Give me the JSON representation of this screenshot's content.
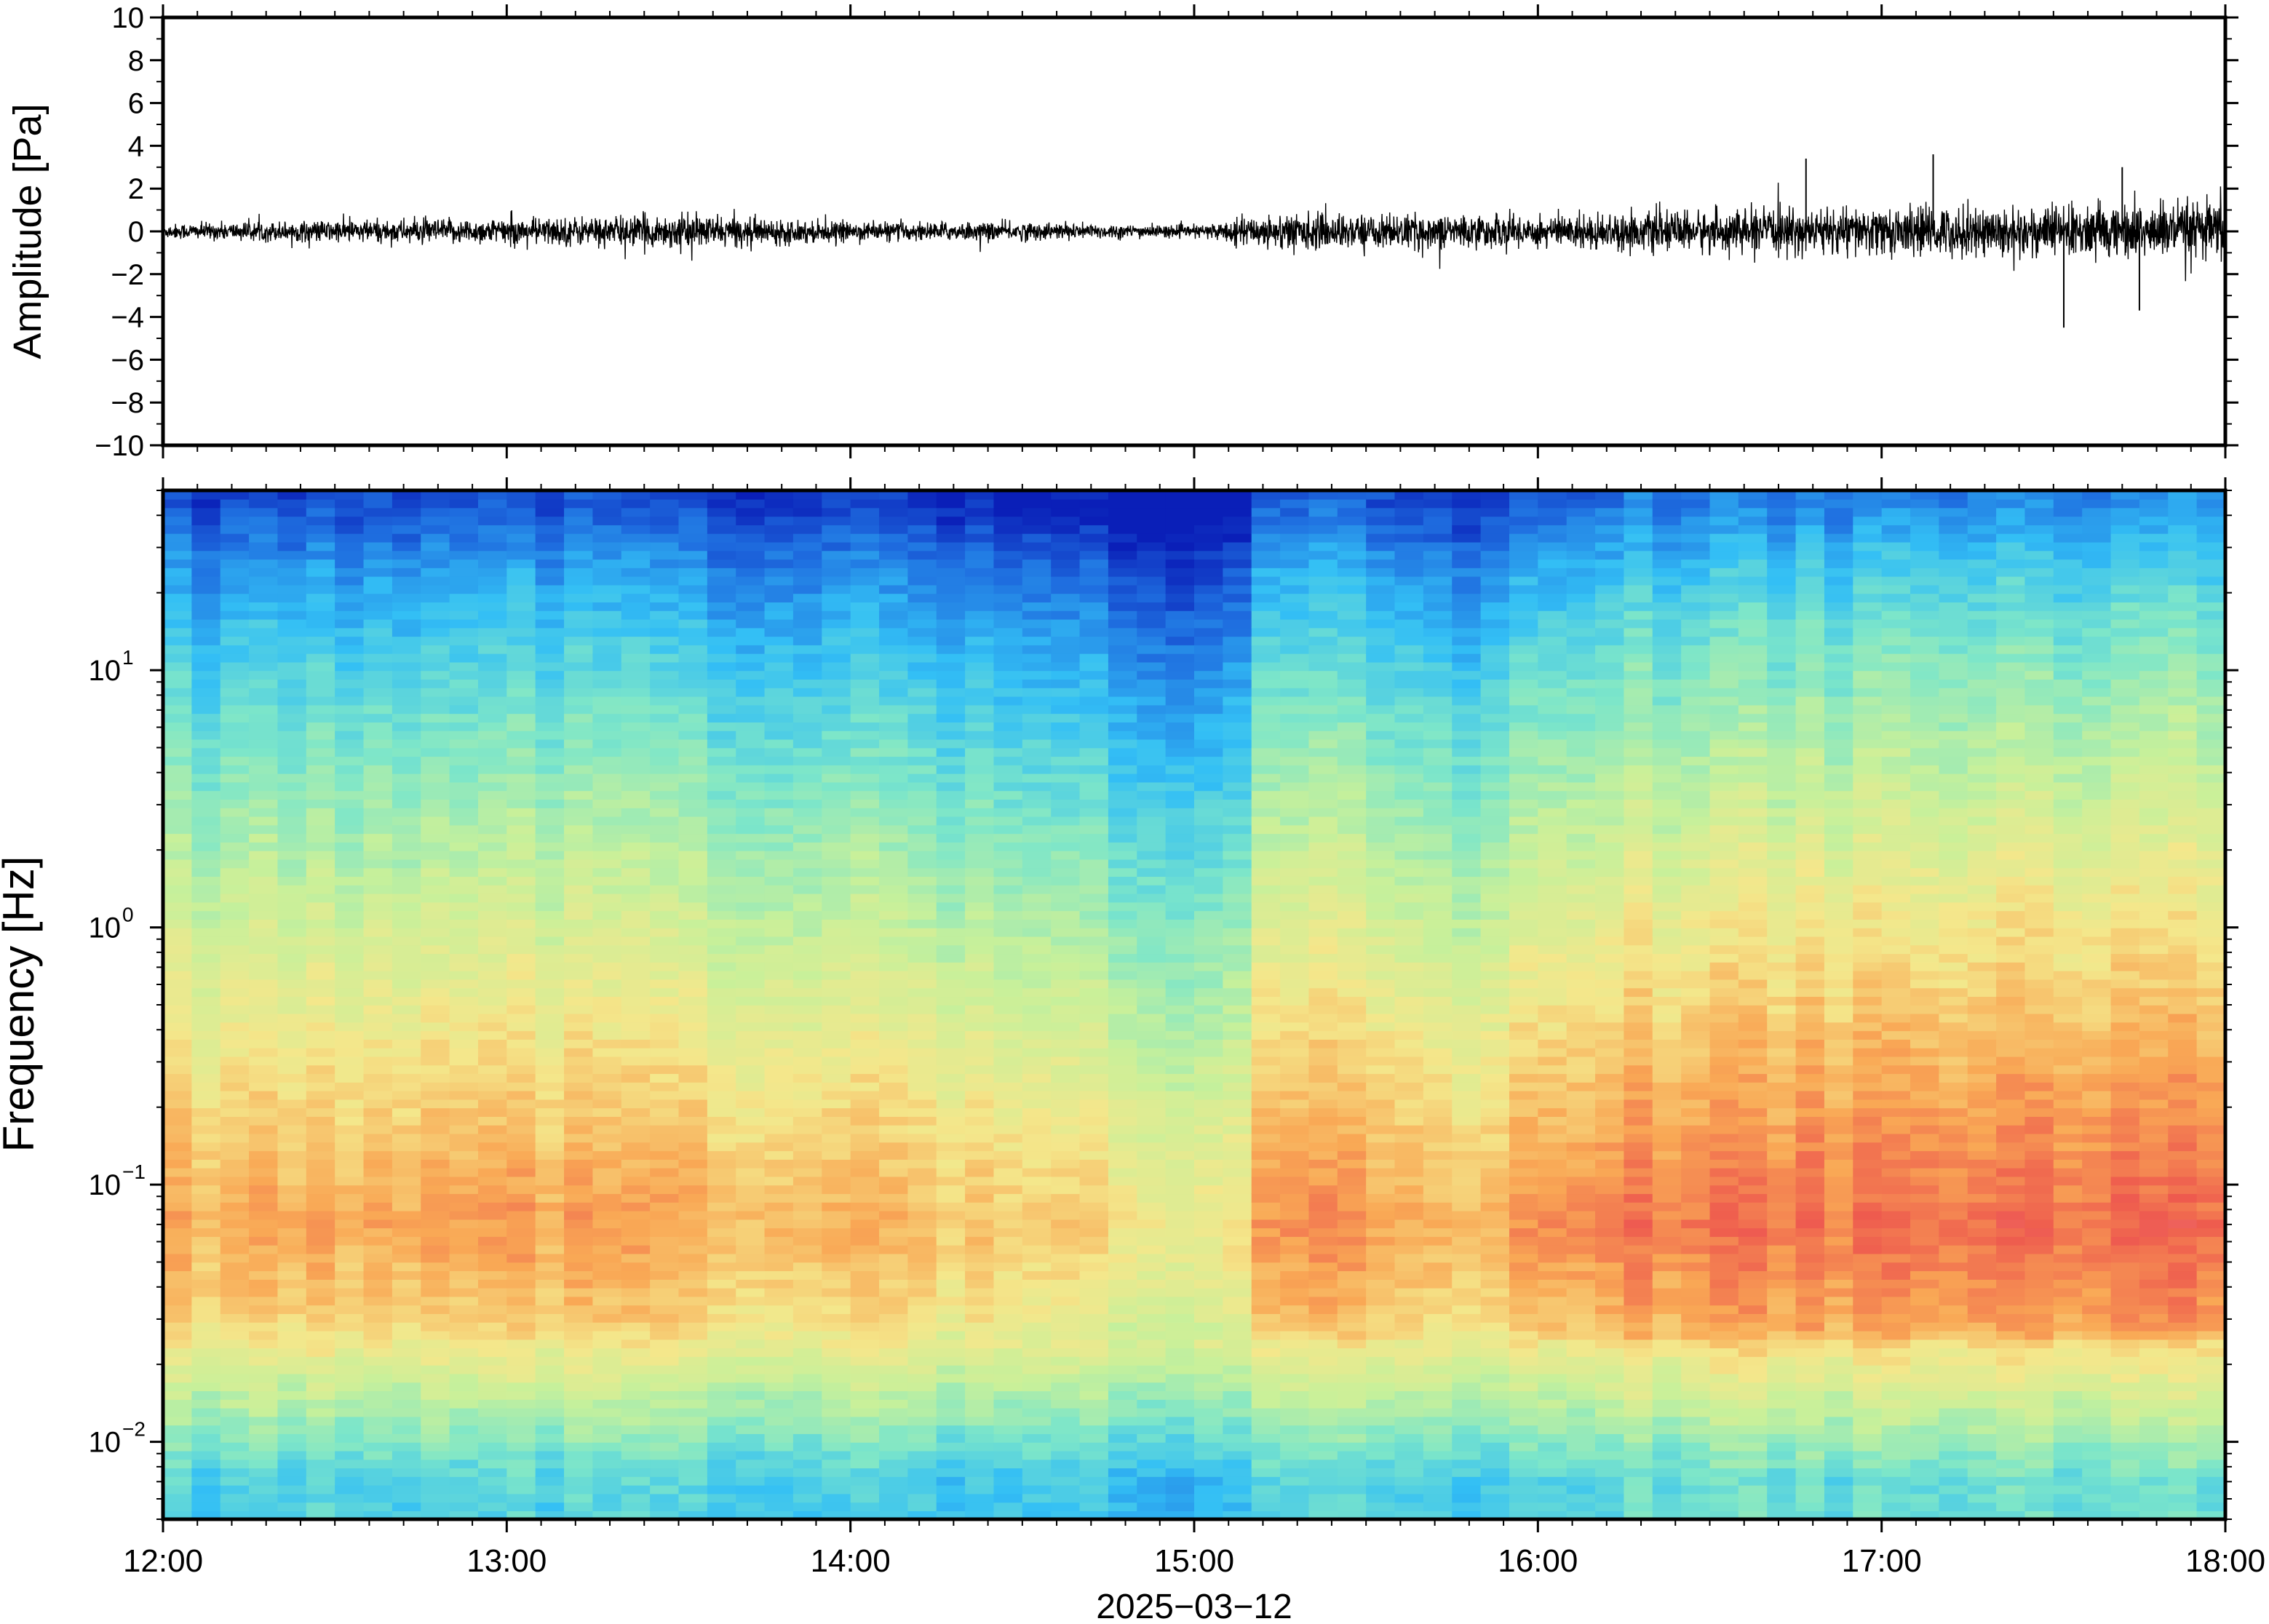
{
  "chart_data": [
    {
      "type": "line",
      "panel": "waveform",
      "ylabel": "Amplitude [Pa]",
      "ylim": [
        -10,
        10
      ],
      "yticks": [
        10,
        8,
        6,
        4,
        2,
        0,
        -2,
        -4,
        -6,
        -8,
        -10
      ],
      "ytick_labels": [
        "10",
        "8",
        "6",
        "4",
        "2",
        "0",
        "−2",
        "−4",
        "−6",
        "−8",
        "−10"
      ],
      "xlim": [
        "12:00",
        "18:00"
      ],
      "series": [
        {
          "color": "#000000",
          "envelope_hours": [
            12.0,
            12.5,
            13.0,
            13.5,
            14.0,
            14.5,
            15.0,
            15.25,
            15.5,
            16.0,
            16.5,
            17.0,
            17.5,
            18.0
          ],
          "envelope_amplitude_pa": [
            0.4,
            0.6,
            0.7,
            0.9,
            0.5,
            0.5,
            0.3,
            1.0,
            0.9,
            0.9,
            1.1,
            1.3,
            1.4,
            1.6
          ],
          "spikes": [
            {
              "hour": 17.15,
              "value": 3.6
            },
            {
              "hour": 16.78,
              "value": 3.4
            },
            {
              "hour": 17.7,
              "value": 3.0
            },
            {
              "hour": 17.53,
              "value": -4.5
            },
            {
              "hour": 17.75,
              "value": -3.7
            },
            {
              "hour": 18.0,
              "value": 2.2
            }
          ]
        }
      ],
      "grid": false
    },
    {
      "type": "heatmap",
      "panel": "spectrogram",
      "ylabel": "Frequency [Hz]",
      "yscale": "log",
      "ylim": [
        0.005,
        50
      ],
      "yticks": [
        0.01,
        0.1,
        1,
        10
      ],
      "ytick_labels": [
        {
          "base": "10",
          "exp": "−2"
        },
        {
          "base": "10",
          "exp": "−1"
        },
        {
          "base": "10",
          "exp": "0"
        },
        {
          "base": "10",
          "exp": "1"
        }
      ],
      "xticks": [
        "12:00",
        "13:00",
        "14:00",
        "15:00",
        "16:00",
        "17:00",
        "18:00"
      ],
      "xlabel": "2025−03−12",
      "colormap": [
        "#0a1fb8",
        "#1f6fe0",
        "#33bff5",
        "#7de6c9",
        "#c8f09a",
        "#f4e78b",
        "#f9a855",
        "#ee5a4e",
        "#f07a8e"
      ],
      "relative_power_profile": {
        "freq_hz": [
          0.007,
          0.015,
          0.03,
          0.07,
          0.2,
          1.0,
          3.0,
          10.0,
          25.0,
          45.0
        ],
        "level": [
          0.3,
          0.48,
          0.66,
          0.74,
          0.66,
          0.52,
          0.42,
          0.3,
          0.18,
          0.06
        ]
      },
      "relative_power_by_time": {
        "hours": [
          12.0,
          13.0,
          14.0,
          14.4,
          14.95,
          15.1,
          15.2,
          15.5,
          15.75,
          16.0,
          17.0,
          18.0
        ],
        "offset": [
          0.0,
          0.02,
          -0.02,
          -0.04,
          -0.12,
          -0.14,
          0.06,
          0.06,
          -0.04,
          0.07,
          0.1,
          0.11
        ]
      },
      "grid": false
    }
  ],
  "x_axis": {
    "tick_labels": [
      "12:00",
      "13:00",
      "14:00",
      "15:00",
      "16:00",
      "17:00",
      "18:00"
    ],
    "date_label": "2025−03−12"
  }
}
